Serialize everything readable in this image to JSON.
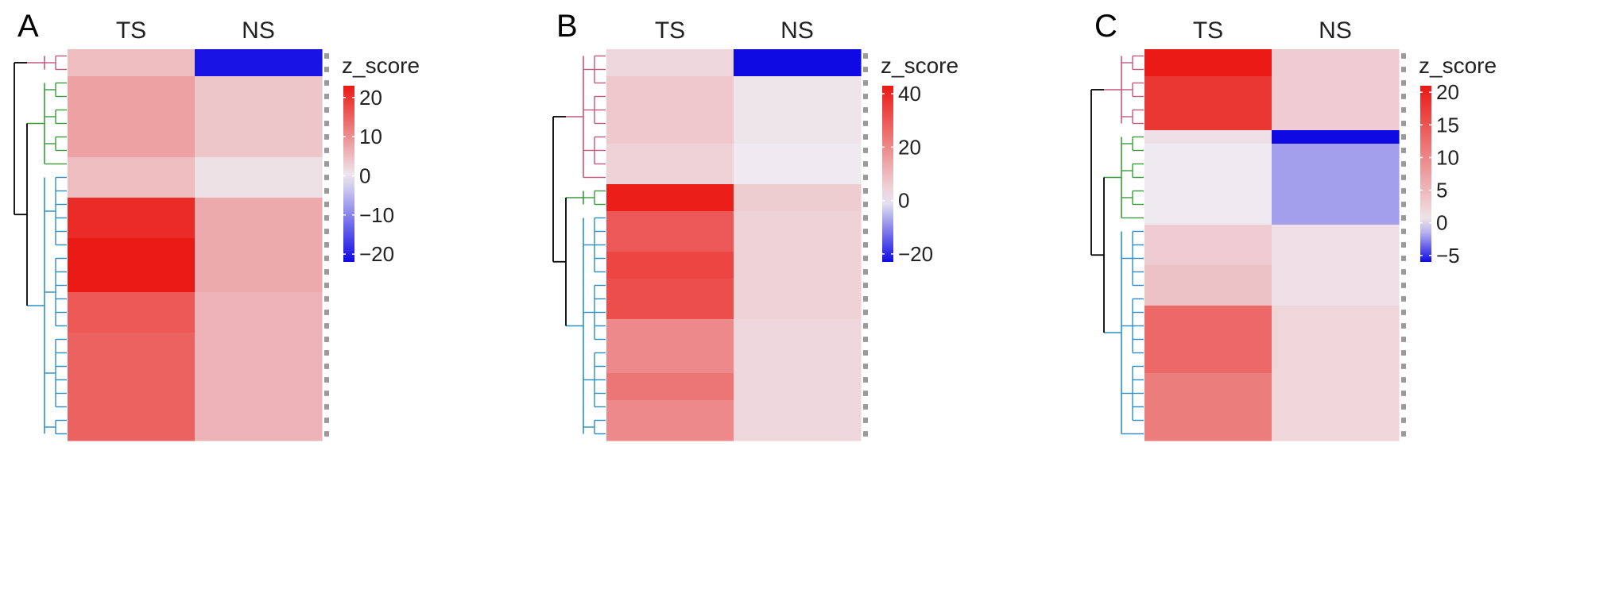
{
  "chart_data": [
    {
      "type": "heatmap",
      "panel_label": "A",
      "columns": [
        "TS",
        "NS"
      ],
      "legend": {
        "title": "z_score",
        "ticks": [
          20,
          10,
          0,
          -10,
          -20
        ],
        "range": [
          -22,
          23
        ]
      },
      "clusters": [
        {
          "name": "",
          "color": "#c2587a",
          "rows": 2
        },
        {
          "name": "",
          "color": "#3a9a3a",
          "rows": 7
        },
        {
          "name": "",
          "color": "#2c8fc3",
          "rows": 20
        }
      ],
      "rows": [
        [
          5,
          -21
        ],
        [
          5,
          -21
        ],
        [
          8,
          4
        ],
        [
          8,
          4
        ],
        [
          8,
          4
        ],
        [
          8,
          4
        ],
        [
          8,
          4
        ],
        [
          8,
          4
        ],
        [
          5,
          1
        ],
        [
          5,
          1
        ],
        [
          5,
          1
        ],
        [
          21,
          7
        ],
        [
          21,
          7
        ],
        [
          21,
          7
        ],
        [
          23,
          7
        ],
        [
          23,
          7
        ],
        [
          23,
          7
        ],
        [
          23,
          7
        ],
        [
          16,
          6
        ],
        [
          16,
          6
        ],
        [
          16,
          6
        ],
        [
          15,
          6
        ],
        [
          15,
          6
        ],
        [
          15,
          6
        ],
        [
          15,
          6
        ],
        [
          15,
          6
        ],
        [
          15,
          6
        ],
        [
          15,
          6
        ],
        [
          15,
          6
        ]
      ]
    },
    {
      "type": "heatmap",
      "panel_label": "B",
      "columns": [
        "TS",
        "NS"
      ],
      "legend": {
        "title": "z_score",
        "ticks": [
          40,
          20,
          0,
          -20
        ],
        "range": [
          -23,
          43
        ]
      },
      "clusters": [
        {
          "name": "",
          "color": "#c2587a",
          "rows": 10
        },
        {
          "name": "",
          "color": "#3a9a3a",
          "rows": 2
        },
        {
          "name": "",
          "color": "#2c8fc3",
          "rows": 17
        }
      ],
      "rows": [
        [
          4,
          -23
        ],
        [
          4,
          -23
        ],
        [
          7,
          1
        ],
        [
          7,
          1
        ],
        [
          7,
          1
        ],
        [
          7,
          1
        ],
        [
          7,
          1
        ],
        [
          5,
          0
        ],
        [
          5,
          0
        ],
        [
          5,
          0
        ],
        [
          42,
          6
        ],
        [
          42,
          6
        ],
        [
          30,
          5
        ],
        [
          30,
          5
        ],
        [
          30,
          5
        ],
        [
          34,
          5
        ],
        [
          34,
          5
        ],
        [
          32,
          5
        ],
        [
          32,
          5
        ],
        [
          32,
          5
        ],
        [
          20,
          4
        ],
        [
          20,
          4
        ],
        [
          20,
          4
        ],
        [
          20,
          4
        ],
        [
          24,
          4
        ],
        [
          24,
          4
        ],
        [
          20,
          4
        ],
        [
          20,
          4
        ],
        [
          20,
          4
        ]
      ]
    },
    {
      "type": "heatmap",
      "panel_label": "C",
      "columns": [
        "TS",
        "NS"
      ],
      "legend": {
        "title": "z_score",
        "ticks": [
          20,
          15,
          10,
          5,
          0,
          -5
        ],
        "range": [
          -6,
          21
        ]
      },
      "clusters": [
        {
          "name": "",
          "color": "#c2587a",
          "rows": 6
        },
        {
          "name": "",
          "color": "#3a9a3a",
          "rows": 7
        },
        {
          "name": "",
          "color": "#2c8fc3",
          "rows": 16
        }
      ],
      "rows": [
        [
          21,
          3
        ],
        [
          21,
          3
        ],
        [
          18,
          3
        ],
        [
          18,
          3
        ],
        [
          18,
          3
        ],
        [
          18,
          3
        ],
        [
          1,
          -6
        ],
        [
          0,
          -2
        ],
        [
          0,
          -2
        ],
        [
          0,
          -2
        ],
        [
          0,
          -2
        ],
        [
          0,
          -2
        ],
        [
          0,
          -2
        ],
        [
          3,
          1
        ],
        [
          3,
          1
        ],
        [
          3,
          1
        ],
        [
          4,
          1
        ],
        [
          4,
          1
        ],
        [
          4,
          1
        ],
        [
          13,
          2
        ],
        [
          13,
          2
        ],
        [
          13,
          2
        ],
        [
          13,
          2
        ],
        [
          13,
          2
        ],
        [
          11,
          2
        ],
        [
          11,
          2
        ],
        [
          11,
          2
        ],
        [
          11,
          2
        ],
        [
          11,
          2
        ]
      ]
    }
  ]
}
